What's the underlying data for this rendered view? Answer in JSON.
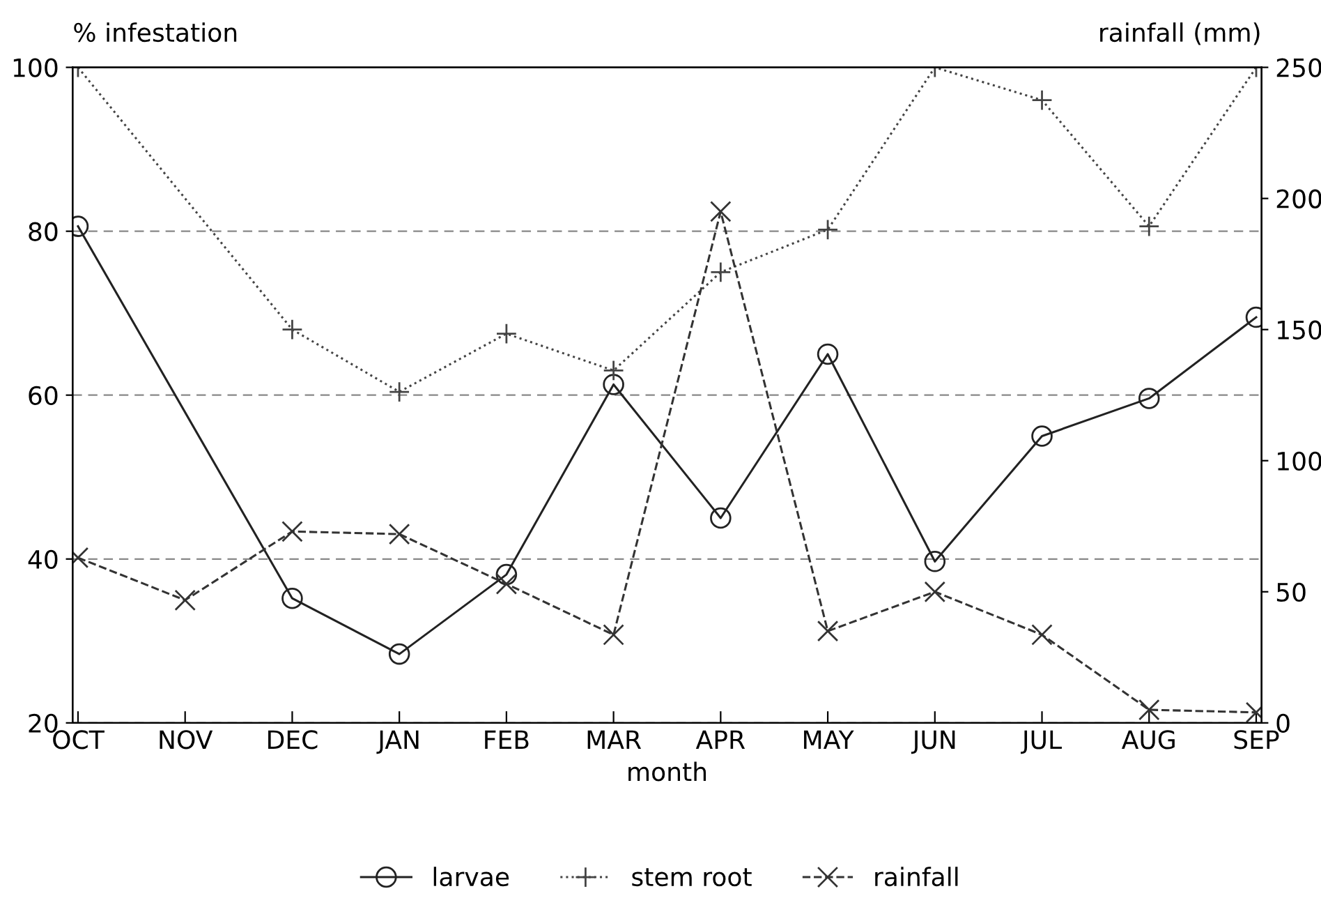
{
  "chart_data": {
    "type": "line",
    "xlabel": "month",
    "ylabel": "% infestation",
    "y2label": "rainfall (mm)",
    "categories": [
      "OCT",
      "NOV",
      "DEC",
      "JAN",
      "FEB",
      "MAR",
      "APR",
      "MAY",
      "JUN",
      "JUL",
      "AUG",
      "SEP"
    ],
    "series": [
      {
        "name": "larvae",
        "color": "#222222",
        "marker": "circle",
        "line_style": "solid",
        "values": [
          80.6,
          null,
          35.2,
          28.4,
          38.1,
          61.3,
          45,
          65,
          39.7,
          55,
          59.6,
          69.5
        ]
      },
      {
        "name": "stem root",
        "color": "#444444",
        "marker": "cross",
        "line_style": "dotted",
        "values": [
          100,
          null,
          68,
          60.4,
          67.5,
          63,
          75,
          80.2,
          100,
          96,
          80.6,
          100
        ]
      },
      {
        "name": "rainfall",
        "color": "#333333",
        "marker": "x",
        "line_style": "dashed",
        "axis": "y2",
        "values": [
          63,
          46.8,
          73,
          72,
          53,
          33.6,
          195,
          35,
          50,
          33.6,
          5,
          4
        ]
      }
    ],
    "ylim": [
      20,
      100
    ],
    "yticks": [
      20,
      40,
      60,
      80,
      100
    ],
    "y2lim": [
      0,
      250
    ],
    "y2ticks": [
      0,
      50,
      100,
      150,
      200,
      250
    ],
    "grid": "y",
    "legend": "bottom"
  }
}
